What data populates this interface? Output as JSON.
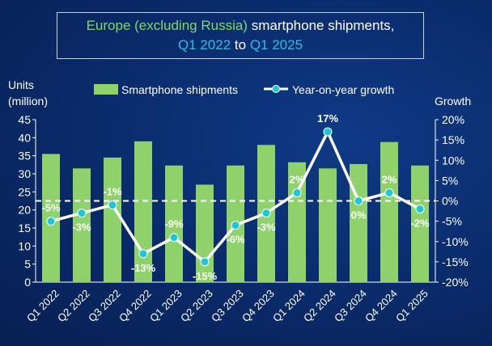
{
  "title": {
    "part_green": "Europe (excluding Russia)",
    "part_white": " smartphone shipments,",
    "part_cyan_1": "Q1 2022",
    "part_to": " to ",
    "part_cyan_2": "Q1 2025"
  },
  "colors": {
    "bar": "#8fd16b",
    "line": "#ffffff",
    "marker": "#1fc6d6",
    "text": "#ffffff",
    "background": "#0a2d6e"
  },
  "chart_data": {
    "type": "bar",
    "categories": [
      "Q1 2022",
      "Q2 2022",
      "Q3 2022",
      "Q4 2022",
      "Q1 2023",
      "Q2 2023",
      "Q3 2023",
      "Q4 2023",
      "Q1 2024",
      "Q2 2024",
      "Q3 2024",
      "Q4 2024",
      "Q1 2025"
    ],
    "series": [
      {
        "name": "Smartphone shipments",
        "type": "bar",
        "axis": "left",
        "values": [
          35.5,
          31.5,
          34.5,
          39,
          32.3,
          27,
          32.3,
          38,
          33.2,
          31.5,
          32.7,
          38.8,
          32.3
        ]
      },
      {
        "name": "Year-on-year growth",
        "type": "line",
        "axis": "right",
        "values": [
          -5,
          -3,
          -1,
          -13,
          -9,
          -15,
          -6,
          -3,
          2,
          17,
          0,
          2,
          -2
        ],
        "labels": [
          "-5%",
          "-3%",
          "-1%",
          "-13%",
          "-9%",
          "-15%",
          "-6%",
          "-3%",
          "2%",
          "17%",
          "0%",
          "2%",
          "-2%"
        ]
      }
    ],
    "ylabel": "Units\n(million)",
    "ylabel_lines": [
      "Units",
      "(million)"
    ],
    "ylim": [
      0,
      45
    ],
    "yticks": [
      "0",
      "5",
      "10",
      "15",
      "20",
      "25",
      "30",
      "35",
      "40",
      "45"
    ],
    "y2label": "Growth",
    "y2lim": [
      -20,
      20
    ],
    "y2ticks": [
      "-20%",
      "-15%",
      "-10%",
      "-5%",
      "0%",
      "5%",
      "10%",
      "15%",
      "20%"
    ],
    "zero_line": "dashed",
    "legend_position": "top",
    "grid": false
  }
}
